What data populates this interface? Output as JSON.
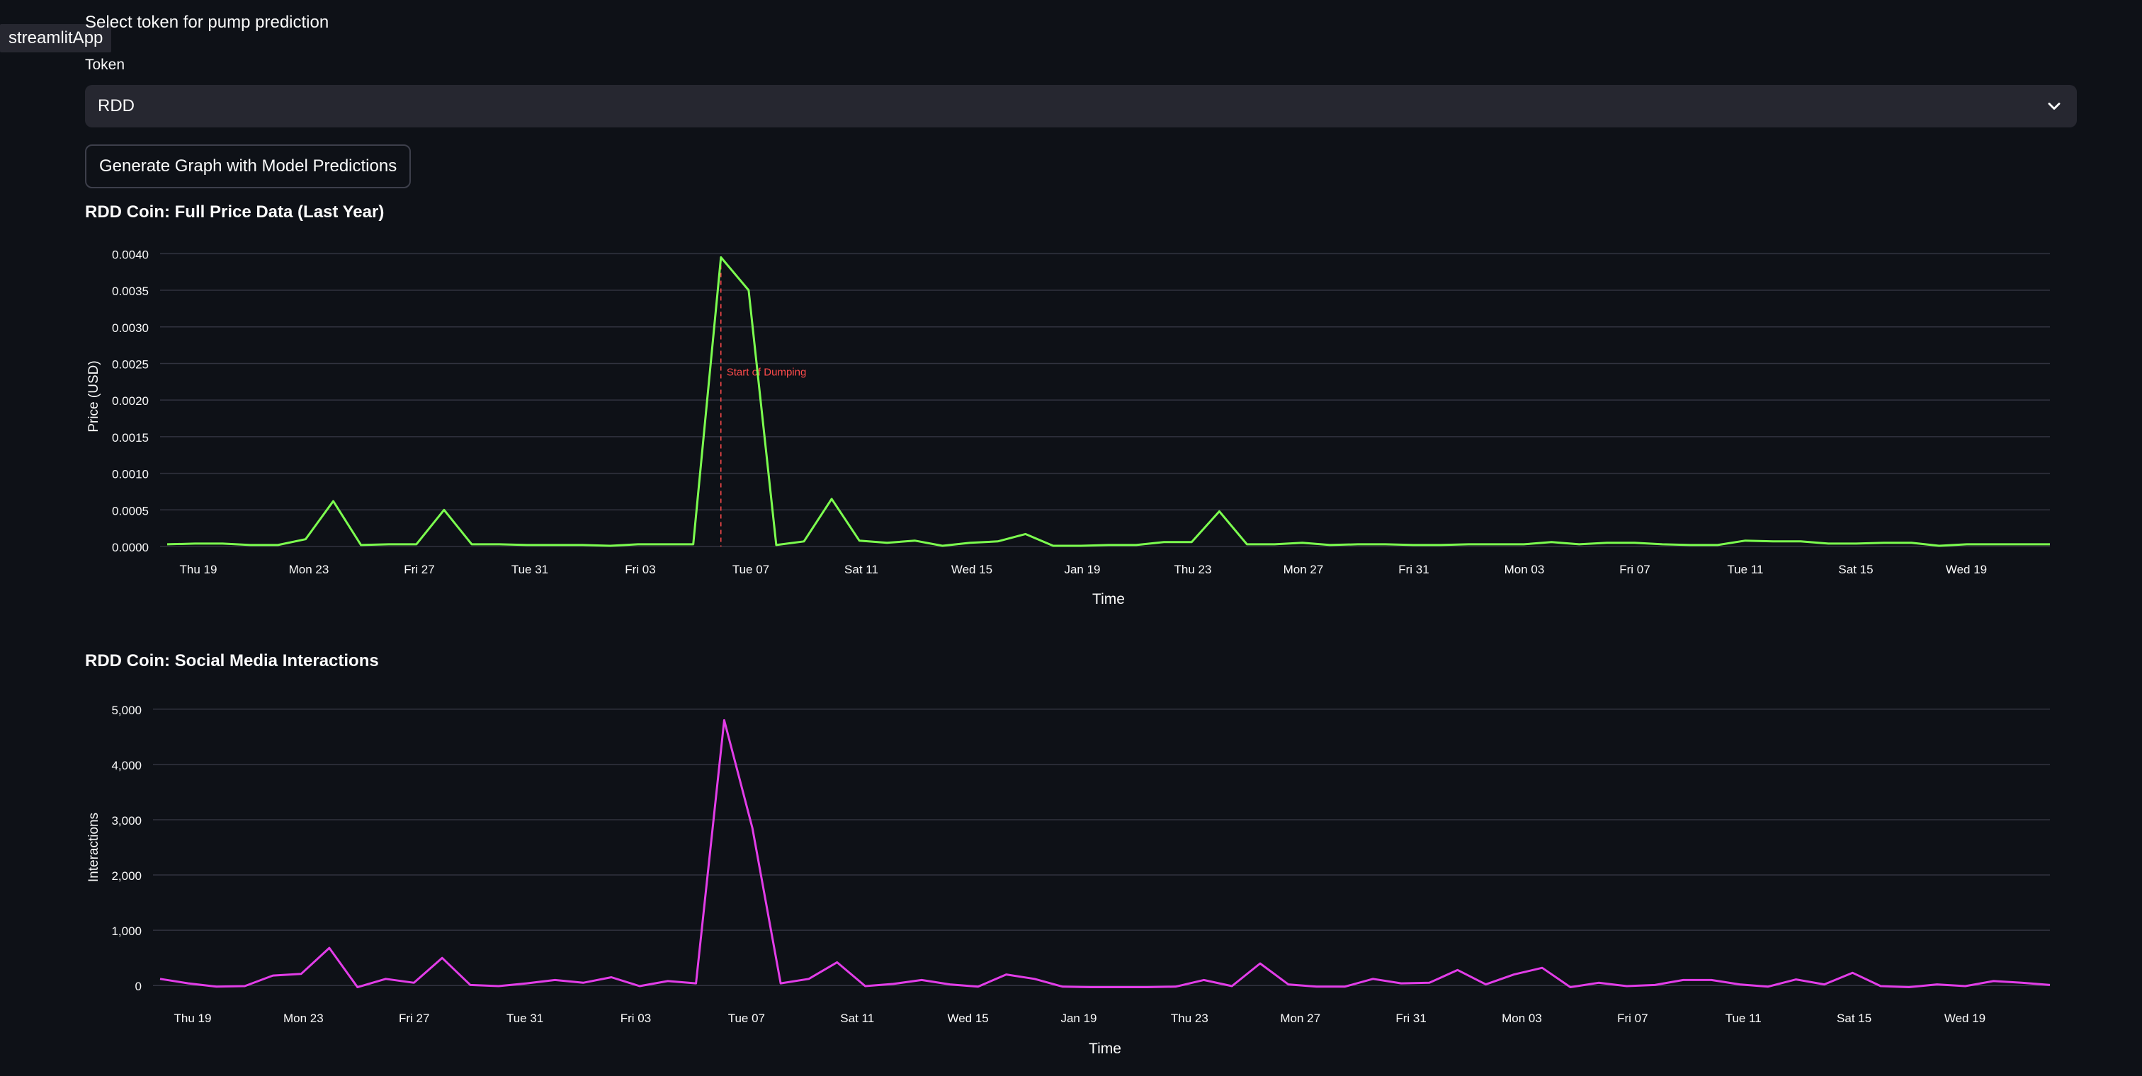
{
  "app_badge": "streamlitApp",
  "page": {
    "header_text": "Select token for pump prediction",
    "token_label": "Token",
    "token_value": "RDD",
    "generate_button": "Generate Graph with Model Predictions"
  },
  "chart_data": [
    {
      "type": "line",
      "title": "RDD Coin: Full Price Data (Last Year)",
      "xlabel": "Time",
      "ylabel": "Price (USD)",
      "ylim": [
        0,
        0.0041
      ],
      "yticks": [
        "0.0000",
        "0.0005",
        "0.0010",
        "0.0015",
        "0.0020",
        "0.0025",
        "0.0030",
        "0.0035",
        "0.0040"
      ],
      "xticks": [
        "Thu 19",
        "Mon 23",
        "Fri 27",
        "Tue 31",
        "Fri 03",
        "Tue 07",
        "Sat 11",
        "Wed 15",
        "Jan 19",
        "Thu 23",
        "Mon 27",
        "Fri 31",
        "Mon 03",
        "Fri 07",
        "Tue 11",
        "Sat 15",
        "Wed 19"
      ],
      "color": "#7cff4f",
      "annotation": {
        "label": "Start of Dumping",
        "color": "#ff4b4b"
      },
      "series": [
        {
          "values": [
            3e-05,
            4e-05,
            4e-05,
            2e-05,
            2e-05,
            0.0001,
            0.00062,
            2e-05,
            3e-05,
            3e-05,
            0.0005,
            3e-05,
            3e-05,
            2e-05,
            2e-05,
            2e-05,
            1e-05,
            3e-05,
            3e-05,
            3e-05,
            0.00395,
            0.0035,
            2e-05,
            7e-05,
            0.00065,
            8e-05,
            5e-05,
            8e-05,
            1e-05,
            5e-05,
            7e-05,
            0.00017,
            1e-05,
            1e-05,
            2e-05,
            2e-05,
            6e-05,
            6e-05,
            0.00048,
            3e-05,
            3e-05,
            5e-05,
            2e-05,
            3e-05,
            3e-05,
            2e-05,
            2e-05,
            3e-05,
            3e-05,
            3e-05,
            6e-05,
            3e-05,
            5e-05,
            5e-05,
            3e-05,
            2e-05,
            2e-05,
            8e-05,
            7e-05,
            7e-05,
            4e-05,
            4e-05,
            5e-05,
            5e-05,
            1e-05,
            3e-05,
            3e-05,
            3e-05,
            3e-05
          ]
        }
      ]
    },
    {
      "type": "line",
      "title": "RDD Coin: Social Media Interactions",
      "xlabel": "Time",
      "ylabel": "Interactions",
      "ylim": [
        -100,
        5100
      ],
      "yticks": [
        "0",
        "1,000",
        "2,000",
        "3,000",
        "4,000",
        "5,000"
      ],
      "xticks": [
        "Thu 19",
        "Mon 23",
        "Fri 27",
        "Tue 31",
        "Fri 03",
        "Tue 07",
        "Sat 11",
        "Wed 15",
        "Jan 19",
        "Thu 23",
        "Mon 27",
        "Fri 31",
        "Mon 03",
        "Fri 07",
        "Tue 11",
        "Sat 15",
        "Wed 19"
      ],
      "color": "#e23de8",
      "series": [
        {
          "values": [
            120,
            40,
            -20,
            -10,
            180,
            210,
            680,
            -30,
            120,
            50,
            500,
            10,
            -10,
            40,
            100,
            50,
            150,
            -10,
            80,
            40,
            4800,
            2850,
            40,
            120,
            420,
            -10,
            30,
            100,
            20,
            -20,
            200,
            120,
            -20,
            -30,
            -30,
            -30,
            -20,
            100,
            -10,
            400,
            20,
            -20,
            -20,
            120,
            40,
            50,
            280,
            20,
            200,
            320,
            -30,
            50,
            -10,
            10,
            100,
            100,
            20,
            -20,
            110,
            20,
            230,
            -10,
            -30,
            20,
            -10,
            80,
            50,
            10
          ]
        }
      ]
    }
  ]
}
